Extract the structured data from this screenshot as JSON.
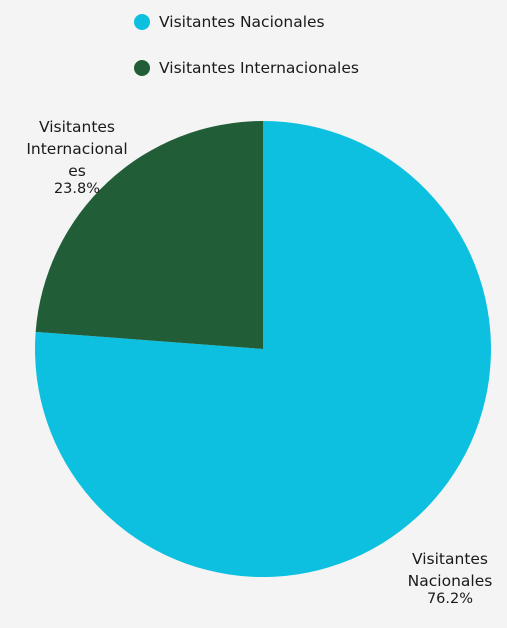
{
  "chart_data": {
    "type": "pie",
    "slices": [
      {
        "name": "Visitantes Nacionales",
        "label": "Visitantes\nNacionales",
        "percent": "76.2%",
        "value": 76.2,
        "color": "#0ec0e0"
      },
      {
        "name": "Visitantes Internacionales",
        "label": "Visitantes\nInternacional\nes",
        "percent": "23.8%",
        "value": 23.8,
        "color": "#215e38"
      }
    ],
    "start": "12 o'clock",
    "direction": "clockwise",
    "legend_position": "top"
  }
}
